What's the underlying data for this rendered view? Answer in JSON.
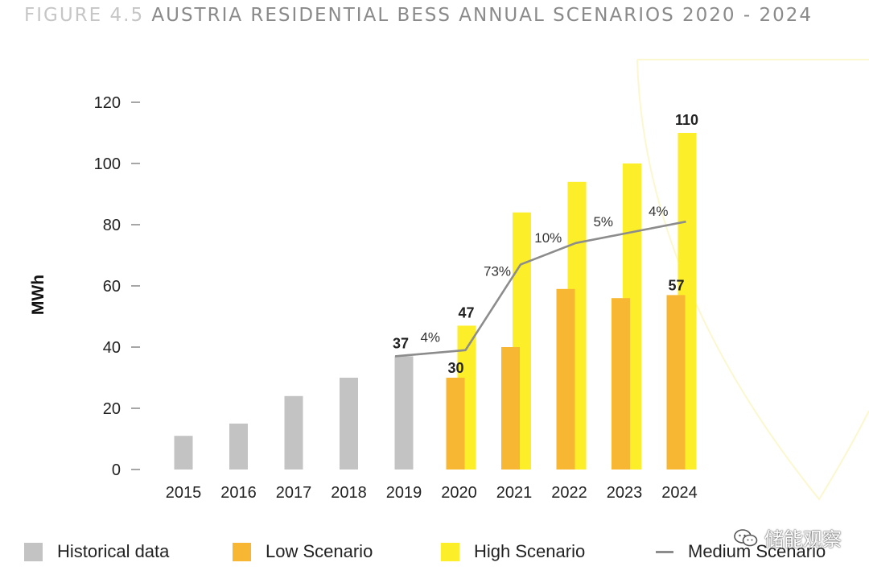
{
  "title": {
    "prefix": "FIGURE 4.5",
    "text": "AUSTRIA RESIDENTIAL BESS ANNUAL SCENARIOS 2020 - 2024"
  },
  "colors": {
    "historical": "#c3c3c3",
    "low": "#f7b733",
    "high": "#fdee2a",
    "medium": "#8c8c8c",
    "title_prefix": "#c6c6c6",
    "title_text": "#8a8a8a"
  },
  "chart_data": {
    "type": "bar",
    "ylabel": "MWh",
    "ylim": [
      0,
      120
    ],
    "yticks": [
      0,
      20,
      40,
      60,
      80,
      100,
      120
    ],
    "categories": [
      "2015",
      "2016",
      "2017",
      "2018",
      "2019",
      "2020",
      "2021",
      "2022",
      "2023",
      "2024"
    ],
    "series": [
      {
        "name": "Historical data",
        "type": "bar",
        "values": [
          11,
          15,
          24,
          30,
          37,
          null,
          null,
          null,
          null,
          null
        ]
      },
      {
        "name": "Low Scenario",
        "type": "bar",
        "values": [
          null,
          null,
          null,
          null,
          null,
          30,
          40,
          59,
          56,
          57
        ]
      },
      {
        "name": "High Scenario",
        "type": "bar",
        "values": [
          null,
          null,
          null,
          null,
          null,
          47,
          84,
          94,
          100,
          110
        ]
      },
      {
        "name": "Medium Scenario",
        "type": "line",
        "values": [
          null,
          null,
          null,
          null,
          37,
          39,
          67,
          74,
          77.5,
          81
        ]
      }
    ],
    "data_labels": [
      {
        "category": "2019",
        "series": "Historical data",
        "text": "37"
      },
      {
        "category": "2020",
        "series": "Low Scenario",
        "text": "30"
      },
      {
        "category": "2020",
        "series": "High Scenario",
        "text": "47"
      },
      {
        "category": "2024",
        "series": "Low Scenario",
        "text": "57"
      },
      {
        "category": "2024",
        "series": "High Scenario",
        "text": "110"
      }
    ],
    "growth_labels": [
      {
        "category": "2020",
        "text": "4%"
      },
      {
        "category": "2021",
        "text": "73%"
      },
      {
        "category": "2022",
        "text": "10%"
      },
      {
        "category": "2023",
        "text": "5%"
      },
      {
        "category": "2024",
        "text": "4%"
      }
    ],
    "legend": {
      "position": "bottom",
      "items": [
        {
          "label": "Historical data",
          "kind": "box",
          "color": "#c3c3c3"
        },
        {
          "label": "Low Scenario",
          "kind": "box",
          "color": "#f7b733"
        },
        {
          "label": "High Scenario",
          "kind": "box",
          "color": "#fdee2a"
        },
        {
          "label": "Medium Scenario",
          "kind": "line",
          "color": "#8c8c8c"
        }
      ]
    }
  },
  "watermark": {
    "text": "储能观察",
    "icon": "wechat-icon"
  }
}
